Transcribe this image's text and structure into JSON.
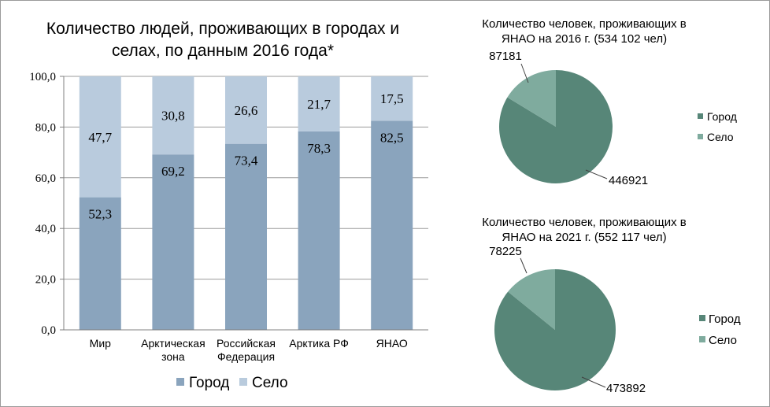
{
  "chart_data": [
    {
      "type": "bar",
      "stacked": true,
      "title_lines": [
        "Количество людей, проживающих в городах и",
        "селах, по данным 2016 года*"
      ],
      "categories": [
        [
          "Мир"
        ],
        [
          "Арктическая",
          "зона"
        ],
        [
          "Российская",
          "Федерация"
        ],
        [
          "Арктика РФ"
        ],
        [
          "ЯНАО"
        ]
      ],
      "series": [
        {
          "name": "Город",
          "values": [
            52.3,
            69.2,
            73.4,
            78.3,
            82.5
          ],
          "labels": [
            "52,3",
            "69,2",
            "73,4",
            "78,3",
            "82,5"
          ],
          "color": "#8aa4bd"
        },
        {
          "name": "Село",
          "values": [
            47.7,
            30.8,
            26.6,
            21.7,
            17.5
          ],
          "labels": [
            "47,7",
            "30,8",
            "26,6",
            "21,7",
            "17,5"
          ],
          "color": "#b9cbdd"
        }
      ],
      "ylim": [
        0,
        100
      ],
      "yticks": [
        0,
        20,
        40,
        60,
        80,
        100
      ],
      "ytick_labels": [
        "0,0",
        "20,0",
        "40,0",
        "60,0",
        "80,0",
        "100,0"
      ],
      "grid": true,
      "legend": "bottom"
    },
    {
      "type": "pie",
      "title_lines": [
        "Количество человек, проживающих в",
        "ЯНАО на 2016 г. (534 102 чел)"
      ],
      "labels": [
        "Город",
        "Село"
      ],
      "values": [
        446921,
        87181
      ],
      "value_labels": [
        "446921",
        "87181"
      ],
      "colors": [
        "#578678",
        "#7fab9e"
      ],
      "legend": "right"
    },
    {
      "type": "pie",
      "title_lines": [
        "Количество человек, проживающих в",
        "ЯНАО на 2021 г. (552 117 чел)"
      ],
      "labels": [
        "Город",
        "Село"
      ],
      "values": [
        473892,
        78225
      ],
      "value_labels": [
        "473892",
        "78225"
      ],
      "colors": [
        "#578678",
        "#7fab9e"
      ],
      "legend": "right"
    }
  ]
}
